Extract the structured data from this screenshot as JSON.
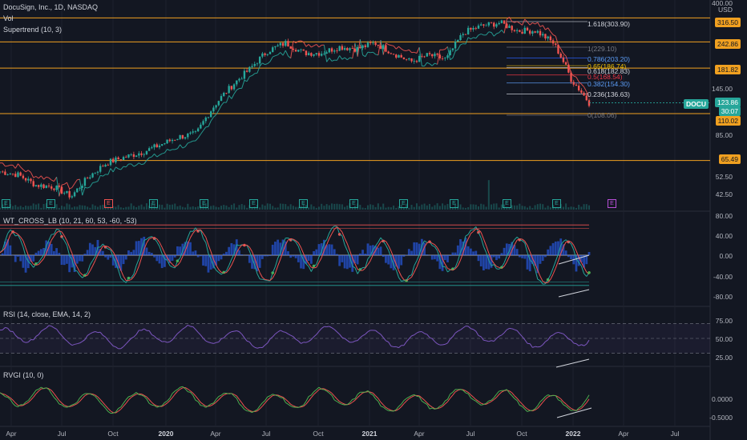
{
  "header": {
    "symbol_line": "DocuSign, Inc., 1D, NASDAQ",
    "indicators": [
      "Vol",
      "Supertrend (10, 3)"
    ]
  },
  "price_axis": {
    "currency": "USD",
    "ticks": [
      "400.00",
      "145.00",
      "85.00",
      "52.50",
      "42.50"
    ]
  },
  "horizontal_levels": [
    {
      "price": "316.50",
      "color": "#f0a020"
    },
    {
      "price": "242.86",
      "color": "#f0a020"
    },
    {
      "price": "181.82",
      "color": "#f0a020"
    },
    {
      "price": "110.02",
      "color": "#f0a020"
    },
    {
      "price": "65.49",
      "color": "#f0a020"
    }
  ],
  "current_price": {
    "ticker": "DOCU",
    "price": "123.86",
    "countdown": "30:07",
    "color": "#26a69a"
  },
  "fib_levels": [
    {
      "label": "1.618(303.90)",
      "color": "#d1d4dc"
    },
    {
      "label": "1(229.10)",
      "color": "#787b86"
    },
    {
      "label": "0.786(203.20)",
      "color": "#2962ff"
    },
    {
      "label": "0.65(186.74)",
      "color": "#f0c000"
    },
    {
      "label": "0.618(182.83)",
      "color": "#d1d4dc"
    },
    {
      "label": "0.5(168.54)",
      "color": "#f23645"
    },
    {
      "label": "0.382(154.30)",
      "color": "#5b9cf6"
    },
    {
      "label": "0.236(136.63)",
      "color": "#d1d4dc"
    },
    {
      "label": "0(108.06)",
      "color": "#787b86"
    }
  ],
  "panes": {
    "wt_cross": {
      "title": "WT_CROSS_LB (10, 21, 60, 53, -60, -53)",
      "ticks": [
        "80.00",
        "40.00",
        "0.00",
        "-40.00",
        "-80.00"
      ]
    },
    "rsi": {
      "title": "RSI (14, close, EMA, 14, 2)",
      "ticks": [
        "75.00",
        "50.00",
        "25.00"
      ]
    },
    "rvgi": {
      "title": "RVGI (10, 0)",
      "ticks": [
        "0.0000",
        "-0.5000"
      ]
    }
  },
  "time_axis": [
    "Apr",
    "Jul",
    "Oct",
    "2020",
    "Apr",
    "Jul",
    "Oct",
    "2021",
    "Apr",
    "Jul",
    "Oct",
    "2022",
    "Apr",
    "Jul"
  ],
  "earnings_markers": [
    "E",
    "E",
    "E",
    "E",
    "E",
    "E",
    "E",
    "E",
    "E",
    "E",
    "E",
    "E",
    "E"
  ],
  "colors": {
    "background": "#131722",
    "up": "#26a69a",
    "down": "#ef5350",
    "level": "#f0a020",
    "accent_purple": "#7e57c2"
  },
  "chart_data": [
    {
      "type": "line",
      "title": "DocuSign, Inc., 1D, NASDAQ",
      "x": [
        "2019-04",
        "2019-05",
        "2019-06",
        "2019-07",
        "2019-08",
        "2019-09",
        "2019-10",
        "2019-11",
        "2019-12",
        "2020-01",
        "2020-02",
        "2020-03",
        "2020-04",
        "2020-05",
        "2020-06",
        "2020-07",
        "2020-08",
        "2020-09",
        "2020-10",
        "2020-11",
        "2020-12",
        "2021-01",
        "2021-02",
        "2021-03",
        "2021-04",
        "2021-05",
        "2021-06",
        "2021-07",
        "2021-08",
        "2021-09",
        "2021-10",
        "2021-11",
        "2021-12",
        "2022-01"
      ],
      "series": [
        {
          "name": "DOCU",
          "values": [
            58,
            56,
            50,
            49,
            44,
            55,
            64,
            68,
            72,
            78,
            85,
            88,
            120,
            150,
            180,
            220,
            240,
            215,
            215,
            230,
            225,
            240,
            215,
            195,
            210,
            200,
            270,
            290,
            300,
            275,
            275,
            240,
            160,
            123.86
          ]
        }
      ]
    }
  ]
}
